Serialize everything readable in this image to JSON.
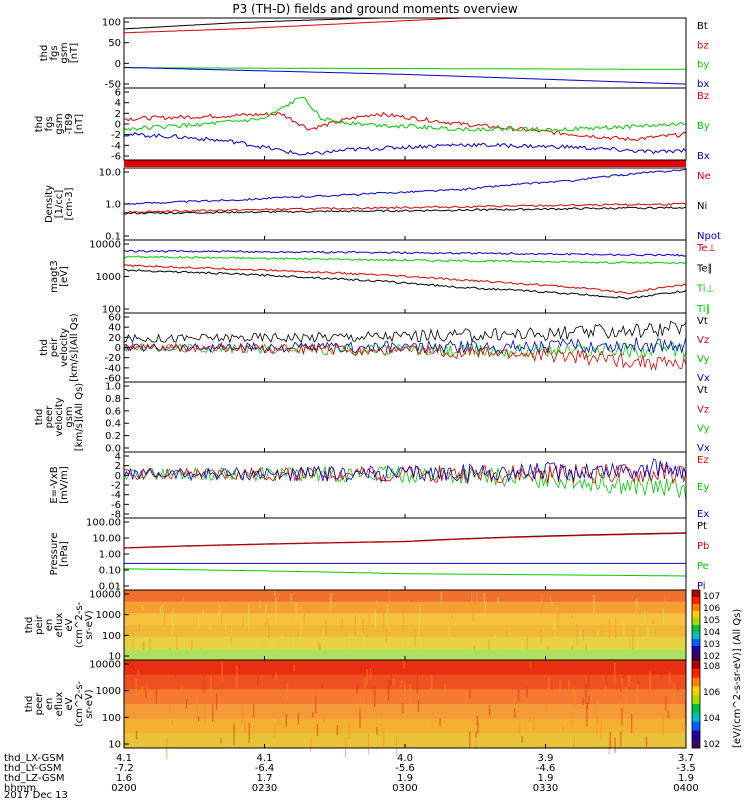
{
  "title": "P3 (TH-D) fields and ground moments overview",
  "colors": {
    "black": "#000000",
    "red": "#e00000",
    "green": "#00cc00",
    "blue": "#0000cc"
  },
  "chart_data": {
    "type": "line",
    "title": "P3 (TH-D) fields and ground moments overview",
    "x": {
      "tick_labels": [
        "0200",
        "0230",
        "0300",
        "0330",
        "0400"
      ],
      "range": [
        "0200",
        "0400"
      ],
      "footer_rows": [
        {
          "label": "thd_LX-GSM",
          "values": [
            "4.1",
            "4.1",
            "4.0",
            "3.9",
            "3.7"
          ]
        },
        {
          "label": "thd_LY-GSM",
          "values": [
            "-7.2",
            "-6.4",
            "-5.6",
            "-4.6",
            "-3.5"
          ]
        },
        {
          "label": "thd_LZ-GSM",
          "values": [
            "1.6",
            "1.7",
            "1.9",
            "1.9",
            "1.9"
          ]
        },
        {
          "label": "hhmm",
          "values": [
            "0200",
            "0230",
            "0300",
            "0330",
            "0400"
          ]
        }
      ],
      "date": "2017 Dec 13"
    },
    "panels": [
      {
        "ylabel": [
          "thd",
          "fgs",
          "gsm",
          "[nT]"
        ],
        "yticks": [
          "100",
          "50",
          "0",
          "-50"
        ],
        "ylim": [
          -80,
          100
        ],
        "log": false,
        "legend": [
          {
            "text": "Bt",
            "color": "black"
          },
          {
            "text": "bz",
            "color": "red"
          },
          {
            "text": "by",
            "color": "green"
          },
          {
            "text": "bx",
            "color": "blue"
          }
        ],
        "series": [
          {
            "color": "black",
            "x": [
              0,
              0.2,
              0.4,
              0.6
            ],
            "y": [
              72,
              88,
              98,
              105
            ]
          },
          {
            "color": "red",
            "x": [
              0,
              0.2,
              0.4,
              0.6
            ],
            "y": [
              62,
              72,
              86,
              100
            ]
          },
          {
            "color": "green",
            "x": [
              0,
              0.5,
              1
            ],
            "y": [
              -28,
              -30,
              -32
            ]
          },
          {
            "color": "blue",
            "x": [
              0,
              0.5,
              1
            ],
            "y": [
              -27,
              -45,
              -70
            ]
          }
        ]
      },
      {
        "ylabel": [
          "thd",
          "fgs",
          "gsm",
          "-T89",
          "[nT]"
        ],
        "yticks": [
          "6",
          "4",
          "2",
          "0",
          "-2",
          "-4",
          "-6"
        ],
        "ylim": [
          -7,
          7
        ],
        "log": false,
        "legend": [
          {
            "text": "Bz",
            "color": "red"
          },
          {
            "text": "By",
            "color": "green"
          },
          {
            "text": "Bx",
            "color": "blue"
          }
        ],
        "series": [
          {
            "color": "red",
            "x": [
              0,
              0.15,
              0.28,
              0.33,
              0.4,
              0.45,
              0.6,
              0.8,
              0.9,
              1
            ],
            "y": [
              1,
              1.5,
              2,
              -1,
              1,
              2,
              0,
              -2,
              -3,
              -2
            ]
          },
          {
            "color": "green",
            "x": [
              0,
              0.15,
              0.25,
              0.32,
              0.35,
              0.42,
              0.6,
              0.8,
              1
            ],
            "y": [
              -1,
              0,
              1,
              5.5,
              1,
              0,
              -1,
              -1,
              0
            ]
          },
          {
            "color": "blue",
            "x": [
              0,
              0.1,
              0.2,
              0.32,
              0.4,
              0.6,
              0.8,
              0.95,
              1
            ],
            "y": [
              -2,
              -2.5,
              -3.5,
              -6,
              -5,
              -4,
              -4.5,
              -5.5,
              -5
            ]
          }
        ]
      },
      {
        "ylabel": [
          "Density",
          "[1/cc]",
          "[cm-3]"
        ],
        "yticks": [
          "10.0",
          "1.0",
          "0.1"
        ],
        "ylim": [
          0.1,
          10
        ],
        "log": true,
        "legend": [
          {
            "text": "Ne",
            "color": "red"
          },
          {
            "text": "Ni",
            "color": "black"
          },
          {
            "text": "Npot",
            "color": "blue"
          }
        ],
        "series": [
          {
            "color": "blue",
            "x": [
              0,
              0.2,
              0.4,
              0.6,
              0.8,
              1
            ],
            "y": [
              1.0,
              1.3,
              1.8,
              2.5,
              4.5,
              9
            ]
          },
          {
            "color": "red",
            "x": [
              0,
              0.5,
              1
            ],
            "y": [
              0.6,
              0.8,
              1.0
            ]
          },
          {
            "color": "black",
            "x": [
              0,
              0.5,
              1
            ],
            "y": [
              0.55,
              0.65,
              0.8
            ]
          }
        ]
      },
      {
        "ylabel": [
          "magt3",
          "[eV]"
        ],
        "yticks": [
          "10000",
          "1000",
          "100"
        ],
        "ylim": [
          100,
          10000
        ],
        "log": true,
        "legend": [
          {
            "text": "Te⊥",
            "color": "red"
          },
          {
            "text": "Te∥",
            "color": "black"
          },
          {
            "text": "Ti⊥",
            "color": "green"
          },
          {
            "text": "Ti∥",
            "color": "green"
          }
        ],
        "series": [
          {
            "color": "blue",
            "x": [
              0,
              0.5,
              1
            ],
            "y": [
              5000,
              4500,
              3800
            ]
          },
          {
            "color": "green",
            "x": [
              0,
              0.5,
              1
            ],
            "y": [
              3500,
              2800,
              2300
            ]
          },
          {
            "color": "red",
            "x": [
              0,
              0.3,
              0.6,
              0.9,
              1
            ],
            "y": [
              2000,
              1400,
              800,
              350,
              600
            ]
          },
          {
            "color": "black",
            "x": [
              0,
              0.3,
              0.6,
              0.9,
              1
            ],
            "y": [
              1500,
              1000,
              500,
              250,
              400
            ]
          }
        ]
      },
      {
        "ylabel": [
          "thd",
          "peir",
          "velocity",
          "[km/s](All Qs)"
        ],
        "yticks": [
          "60",
          "40",
          "20",
          "0",
          "-20",
          "-40",
          "-60"
        ],
        "ylim": [
          -60,
          60
        ],
        "log": false,
        "legend": [
          {
            "text": "Vt",
            "color": "black"
          },
          {
            "text": "Vz",
            "color": "red"
          },
          {
            "text": "Vy",
            "color": "green"
          },
          {
            "text": "Vx",
            "color": "blue"
          }
        ],
        "series": [
          {
            "color": "black",
            "x": [
              0,
              0.5,
              0.8,
              1
            ],
            "y": [
              15,
              20,
              25,
              35
            ]
          },
          {
            "color": "green",
            "x": [
              0,
              0.5,
              1
            ],
            "y": [
              0,
              -5,
              -5
            ]
          },
          {
            "color": "blue",
            "x": [
              0,
              0.5,
              1
            ],
            "y": [
              0,
              0,
              5
            ]
          },
          {
            "color": "red",
            "x": [
              0,
              0.5,
              0.8,
              1
            ],
            "y": [
              0,
              -5,
              -15,
              -30
            ]
          }
        ]
      },
      {
        "ylabel": [
          "thd",
          "peer",
          "velocity",
          "gsm",
          "[km/s](All Qs)"
        ],
        "yticks": [
          "1.0",
          "0.8",
          "0.6",
          "0.4",
          "0.2",
          "0.0"
        ],
        "ylim": [
          0,
          1
        ],
        "log": false,
        "legend": [
          {
            "text": "Vt",
            "color": "black"
          },
          {
            "text": "Vz",
            "color": "red"
          },
          {
            "text": "Vy",
            "color": "green"
          },
          {
            "text": "Vx",
            "color": "blue"
          }
        ],
        "series": []
      },
      {
        "ylabel": [
          "E=-VxB",
          "[mV/m]"
        ],
        "yticks": [
          "4",
          "2",
          "0",
          "-2",
          "-4",
          "-6",
          "-8"
        ],
        "ylim": [
          -8,
          4
        ],
        "log": false,
        "legend": [
          {
            "text": "Ez",
            "color": "red"
          },
          {
            "text": "Ey",
            "color": "green"
          },
          {
            "text": "Ex",
            "color": "blue"
          }
        ],
        "series": [
          {
            "color": "green",
            "x": [
              0,
              0.5,
              0.8,
              1
            ],
            "y": [
              0,
              0,
              -1,
              -3
            ]
          },
          {
            "color": "red",
            "x": [
              0,
              0.5,
              1
            ],
            "y": [
              0,
              0,
              0
            ]
          },
          {
            "color": "blue",
            "x": [
              0,
              0.5,
              0.8,
              1
            ],
            "y": [
              0,
              0,
              0.5,
              1
            ]
          }
        ]
      },
      {
        "ylabel": [
          "Pressure",
          "[nPa]"
        ],
        "yticks": [
          "100.00",
          "10.00",
          "1.00",
          "0.10",
          "0.01"
        ],
        "ylim": [
          0.01,
          100
        ],
        "log": true,
        "legend": [
          {
            "text": "Pt",
            "color": "black"
          },
          {
            "text": "Pb",
            "color": "red"
          },
          {
            "text": "Pe",
            "color": "green"
          },
          {
            "text": "Pi",
            "color": "blue"
          }
        ],
        "series": [
          {
            "color": "black",
            "x": [
              0,
              0.5,
              1
            ],
            "y": [
              2.2,
              5,
              15
            ]
          },
          {
            "color": "red",
            "x": [
              0,
              0.5,
              1
            ],
            "y": [
              2.1,
              4.8,
              14
            ]
          },
          {
            "color": "blue",
            "x": [
              0,
              0.5,
              1
            ],
            "y": [
              0.3,
              0.3,
              0.3
            ]
          },
          {
            "color": "green",
            "x": [
              0,
              0.5,
              1
            ],
            "y": [
              0.15,
              0.08,
              0.06
            ]
          }
        ]
      },
      {
        "type": "heatmap",
        "ylabel": [
          "thd",
          "peir",
          "en",
          "eflux",
          "eV",
          "(cm^2-s-",
          "sr-eV)"
        ],
        "yticks": [
          "10000",
          "1000",
          "100",
          "10"
        ],
        "ylim": [
          10,
          10000
        ],
        "log": true,
        "colorbar_ticks": [
          "10^7",
          "10^6",
          "10^5",
          "10^4",
          "10^3",
          "10^2"
        ]
      },
      {
        "type": "heatmap",
        "ylabel": [
          "thd",
          "peer",
          "en",
          "eflux",
          "eV",
          "(cm^2-s-",
          "sr-eV)"
        ],
        "yticks": [
          "10000",
          "1000",
          "100",
          "10"
        ],
        "ylim": [
          10,
          10000
        ],
        "log": true,
        "colorbar_ticks": [
          "10^8",
          "10^6",
          "10^4",
          "10^2"
        ],
        "colorbar_label": "[eV/(cm^2-s-sr-eV)] (All Qs)"
      }
    ]
  }
}
